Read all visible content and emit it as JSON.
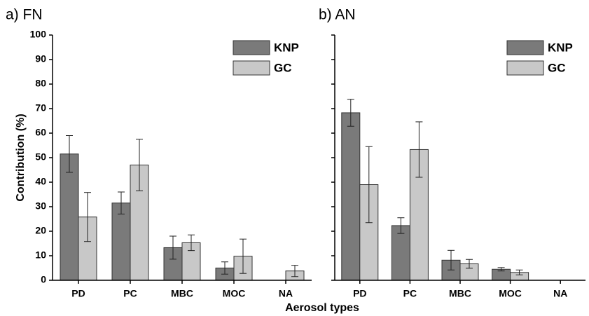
{
  "chart_data": [
    {
      "type": "bar",
      "title": "a) FN",
      "ylabel": "Contribution (%)",
      "xlabel": "Aerosol types",
      "categories": [
        "PD",
        "PC",
        "MBC",
        "MOC",
        "NA"
      ],
      "series": [
        {
          "name": "KNP",
          "color": "#7a7a7a",
          "values": [
            51.5,
            31.5,
            13.3,
            5,
            null
          ],
          "errors": [
            7.5,
            4.5,
            4.7,
            2.5,
            null
          ]
        },
        {
          "name": "GC",
          "color": "#c8c8c8",
          "values": [
            25.8,
            47,
            15.3,
            9.8,
            3.8
          ],
          "errors": [
            10,
            10.5,
            3.2,
            7,
            2.3
          ]
        }
      ],
      "ylim": [
        0,
        100
      ],
      "yticks": [
        0,
        10,
        20,
        30,
        40,
        50,
        60,
        70,
        80,
        90,
        100
      ],
      "ytick_labels": true,
      "legend": "upper right"
    },
    {
      "type": "bar",
      "title": "b) AN",
      "categories": [
        "PD",
        "PC",
        "MBC",
        "MOC",
        "NA"
      ],
      "series": [
        {
          "name": "KNP",
          "color": "#7a7a7a",
          "values": [
            68.3,
            22.3,
            8.2,
            4.5,
            null
          ],
          "errors": [
            5.5,
            3.2,
            4,
            0.7,
            null
          ]
        },
        {
          "name": "GC",
          "color": "#c8c8c8",
          "values": [
            39,
            53.3,
            6.7,
            3.2,
            null
          ],
          "errors": [
            15.5,
            11.3,
            1.8,
            1,
            null
          ]
        }
      ],
      "ylim": [
        0,
        100
      ],
      "yticks": [
        0,
        10,
        20,
        30,
        40,
        50,
        60,
        70,
        80,
        90,
        100
      ],
      "ytick_labels": false,
      "legend": "upper right"
    }
  ]
}
